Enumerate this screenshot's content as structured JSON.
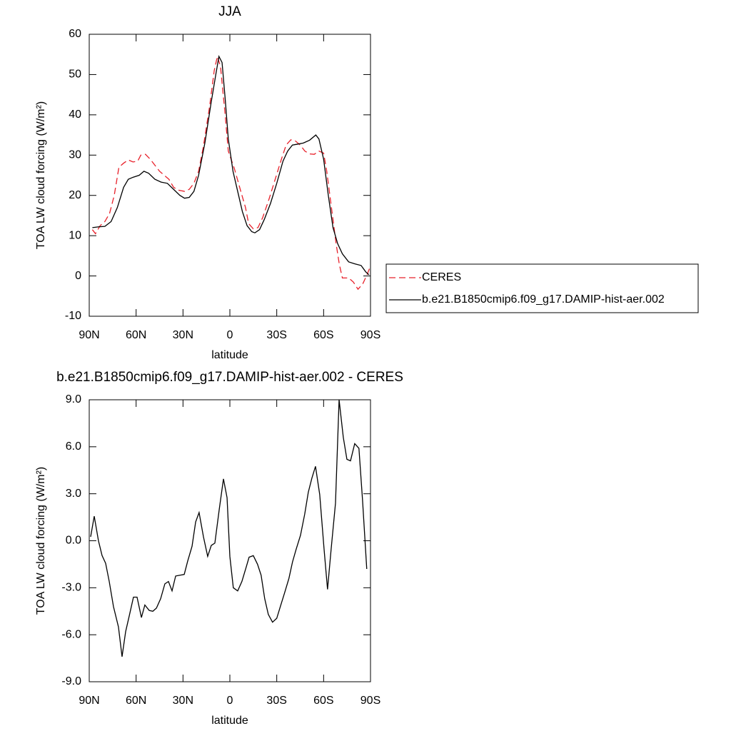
{
  "chart_data": [
    {
      "type": "line",
      "title": "JJA",
      "xlabel": "latitude",
      "ylabel": "TOA LW cloud forcing (W/m²)",
      "xlim": [
        90,
        -90
      ],
      "xticks": [
        {
          "value": 90,
          "label": "90N"
        },
        {
          "value": 60,
          "label": "60N"
        },
        {
          "value": 30,
          "label": "30N"
        },
        0,
        {
          "value": -30,
          "label": "30S"
        },
        {
          "value": -60,
          "label": "60S"
        },
        {
          "value": -90,
          "label": "90S"
        }
      ],
      "ylim": [
        -10,
        60
      ],
      "yticks": [
        -10,
        0,
        10,
        20,
        30,
        40,
        50,
        60
      ],
      "legend": "right",
      "series": [
        {
          "name": "CERES",
          "color": "#e8202a",
          "dash": true,
          "x": [
            88,
            86,
            83,
            80,
            77,
            74,
            71,
            68,
            65,
            62,
            59,
            57,
            54,
            51,
            48,
            45,
            42,
            39,
            36,
            33,
            29,
            26,
            23,
            20,
            17,
            13,
            10,
            8,
            6,
            3,
            1,
            -3,
            -7,
            -10,
            -12,
            -15,
            -18,
            -21,
            -25,
            -29,
            -33,
            -36,
            -39,
            -42,
            -45,
            -48,
            -51,
            -54,
            -57,
            -60,
            -62,
            -65,
            -68,
            -70,
            -72,
            -76,
            -79,
            -82,
            -85,
            -88,
            -89.5
          ],
          "values": [
            11.5,
            10.5,
            12.5,
            13.5,
            15.5,
            20,
            27,
            28,
            28.8,
            28.3,
            28.5,
            30,
            30.2,
            29,
            27.5,
            26,
            25,
            24,
            22,
            21.3,
            21,
            21.5,
            23,
            26,
            32,
            42,
            51,
            54.5,
            52,
            40,
            31,
            26.5,
            21,
            17,
            13,
            11.7,
            12,
            14.5,
            19,
            24,
            29,
            32.5,
            33.8,
            33.5,
            32.5,
            31,
            30.3,
            30.2,
            31,
            30.5,
            26,
            17,
            8,
            3,
            -0.5,
            -0.5,
            -1.5,
            -3.3,
            -2,
            0.5,
            2
          ]
        },
        {
          "name": "b.e21.B1850cmip6.f09_g17.DAMIP-hist-aer.002",
          "color": "#000000",
          "dash": false,
          "x": [
            88,
            84,
            80,
            76,
            72,
            68,
            65,
            62,
            58,
            55,
            52,
            48,
            44,
            40,
            36,
            32,
            29,
            26,
            23,
            20,
            16,
            12,
            9,
            7,
            5,
            3,
            1,
            -2,
            -5,
            -8,
            -11,
            -14,
            -16,
            -19,
            -22,
            -26,
            -30,
            -34,
            -37,
            -40,
            -43,
            -47,
            -51,
            -55,
            -57,
            -60,
            -63,
            -66,
            -69,
            -72,
            -76,
            -80,
            -84,
            -87,
            -89
          ],
          "values": [
            12,
            12.2,
            12.3,
            13.5,
            17,
            22,
            24,
            24.5,
            25,
            26,
            25.5,
            24,
            23.3,
            23,
            21.5,
            20,
            19.3,
            19.5,
            21,
            25,
            33,
            43,
            50,
            54.5,
            53,
            44,
            34,
            26,
            21,
            16,
            12.5,
            11,
            10.7,
            11.5,
            14,
            18,
            23,
            28.5,
            31,
            32.5,
            32.7,
            33,
            33.7,
            35,
            34,
            29,
            20,
            12,
            8,
            5.5,
            3.5,
            3,
            2.6,
            1,
            0.3
          ]
        }
      ]
    },
    {
      "type": "line",
      "title": "b.e21.B1850cmip6.f09_g17.DAMIP-hist-aer.002 - CERES",
      "xlabel": "latitude",
      "ylabel": "TOA LW cloud forcing (W/m²)",
      "xlim": [
        90,
        -90
      ],
      "xticks": [
        {
          "value": 90,
          "label": "90N"
        },
        {
          "value": 60,
          "label": "60N"
        },
        {
          "value": 30,
          "label": "30N"
        },
        0,
        {
          "value": -30,
          "label": "30S"
        },
        {
          "value": -60,
          "label": "60S"
        },
        {
          "value": -90,
          "label": "90S"
        }
      ],
      "ylim": [
        -9,
        9
      ],
      "yticks": [
        {
          "value": -9,
          "label": "-9.0"
        },
        {
          "value": -6,
          "label": "-6.0"
        },
        {
          "value": -3,
          "label": "-3.0"
        },
        {
          "value": 0,
          "label": "0.0"
        },
        {
          "value": 3,
          "label": "3.0"
        },
        {
          "value": 6,
          "label": "6.0"
        },
        {
          "value": 9,
          "label": "9.0"
        }
      ],
      "series": [
        {
          "color": "#000000",
          "dash": false,
          "x": [
            89.1,
            86.8,
            84.1,
            81.8,
            79.5,
            77.2,
            74.5,
            71.3,
            69,
            66.7,
            64.4,
            61.7,
            59.4,
            56.6,
            54.4,
            51.6,
            49.3,
            47,
            44.3,
            41.6,
            39.3,
            37,
            34.7,
            31.9,
            29.2,
            27,
            24.2,
            21.9,
            19.7,
            16.9,
            14.2,
            11.9,
            9.6,
            6.8,
            4.1,
            1.8,
            0,
            -2.2,
            -5,
            -7.7,
            -10.4,
            -12.3,
            -15,
            -17.7,
            -20,
            -22.3,
            -24.6,
            -27.3,
            -30,
            -32.3,
            -35.1,
            -37.8,
            -40.1,
            -42.4,
            -45.2,
            -47.9,
            -50.2,
            -52.5,
            -54.8,
            -57.5,
            -60.3,
            -62.5,
            -64.8,
            -67.6,
            -69.9,
            -72.6,
            -74.9,
            -77.2,
            -79.9,
            -82.6,
            -84.9,
            -87.6
          ],
          "values": [
            0.25,
            1.57,
            0,
            -0.94,
            -1.44,
            -2.6,
            -4.2,
            -5.5,
            -7.4,
            -5.8,
            -4.8,
            -3.6,
            -3.6,
            -4.9,
            -4.1,
            -4.45,
            -4.5,
            -4.3,
            -3.7,
            -2.75,
            -2.6,
            -3.2,
            -2.25,
            -2.2,
            -2.15,
            -1.3,
            -0.35,
            1.2,
            1.8,
            0.25,
            -1,
            -0.3,
            -0.15,
            2,
            3.95,
            2.75,
            -1,
            -3,
            -3.2,
            -2.6,
            -1.7,
            -1.05,
            -0.95,
            -1.5,
            -2.2,
            -3.7,
            -4.7,
            -5.2,
            -4.95,
            -4.2,
            -3.3,
            -2.4,
            -1.35,
            -0.55,
            0.35,
            1.7,
            3.1,
            4,
            4.75,
            2.95,
            -0.55,
            -3.1,
            -0.55,
            2.4,
            9,
            6.6,
            5.2,
            5.1,
            6.2,
            5.9,
            2.6,
            -1.8
          ]
        }
      ]
    }
  ]
}
